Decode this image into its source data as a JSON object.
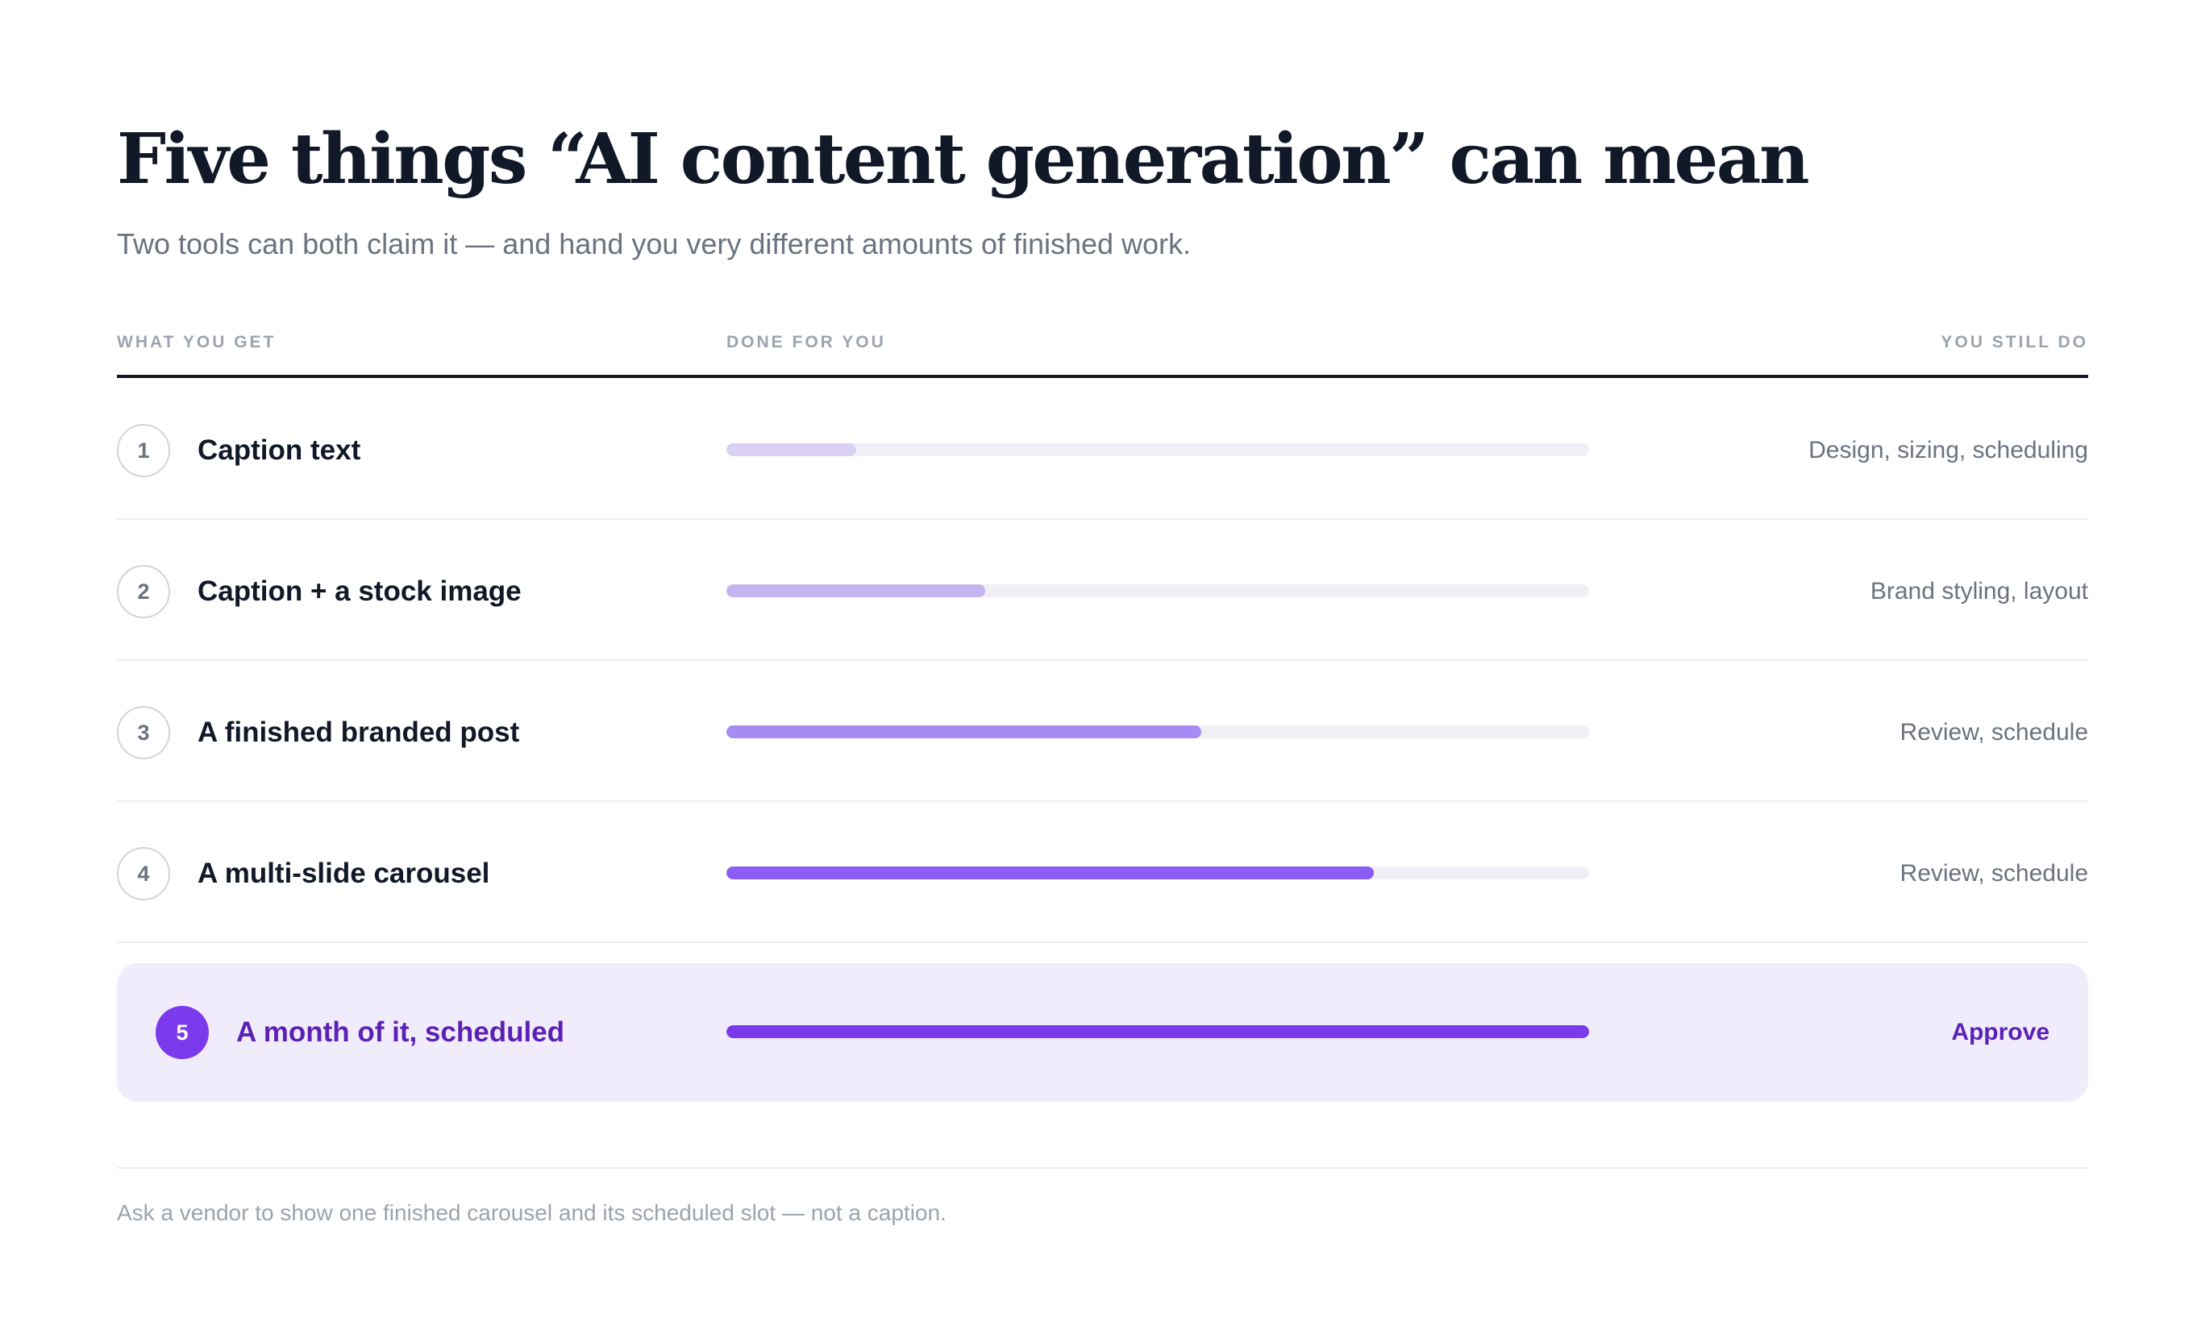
{
  "title": "Five things “AI content generation” can mean",
  "subtitle": "Two tools can both claim it — and hand you very different amounts of finished work.",
  "columns": {
    "what": "WHAT YOU GET",
    "done": "DONE FOR YOU",
    "still": "YOU STILL DO"
  },
  "rows": [
    {
      "num": "1",
      "label": "Caption text",
      "done_fraction": 0.15,
      "still": "Design, sizing, scheduling",
      "color": "#d9d0f3"
    },
    {
      "num": "2",
      "label": "Caption + a stock image",
      "done_fraction": 0.3,
      "still": "Brand styling, layout",
      "color": "#c4b4ef"
    },
    {
      "num": "3",
      "label": "A finished branded post",
      "done_fraction": 0.55,
      "still": "Review, schedule",
      "color": "#a78bf5"
    },
    {
      "num": "4",
      "label": "A multi-slide carousel",
      "done_fraction": 0.75,
      "still": "Review, schedule",
      "color": "#8b5cf6"
    },
    {
      "num": "5",
      "label": "A month of it, scheduled",
      "done_fraction": 1.0,
      "still": "Approve",
      "color": "#7c3aed"
    }
  ],
  "footnote": "Ask a vendor to show one finished carousel and its scheduled slot — not a caption."
}
